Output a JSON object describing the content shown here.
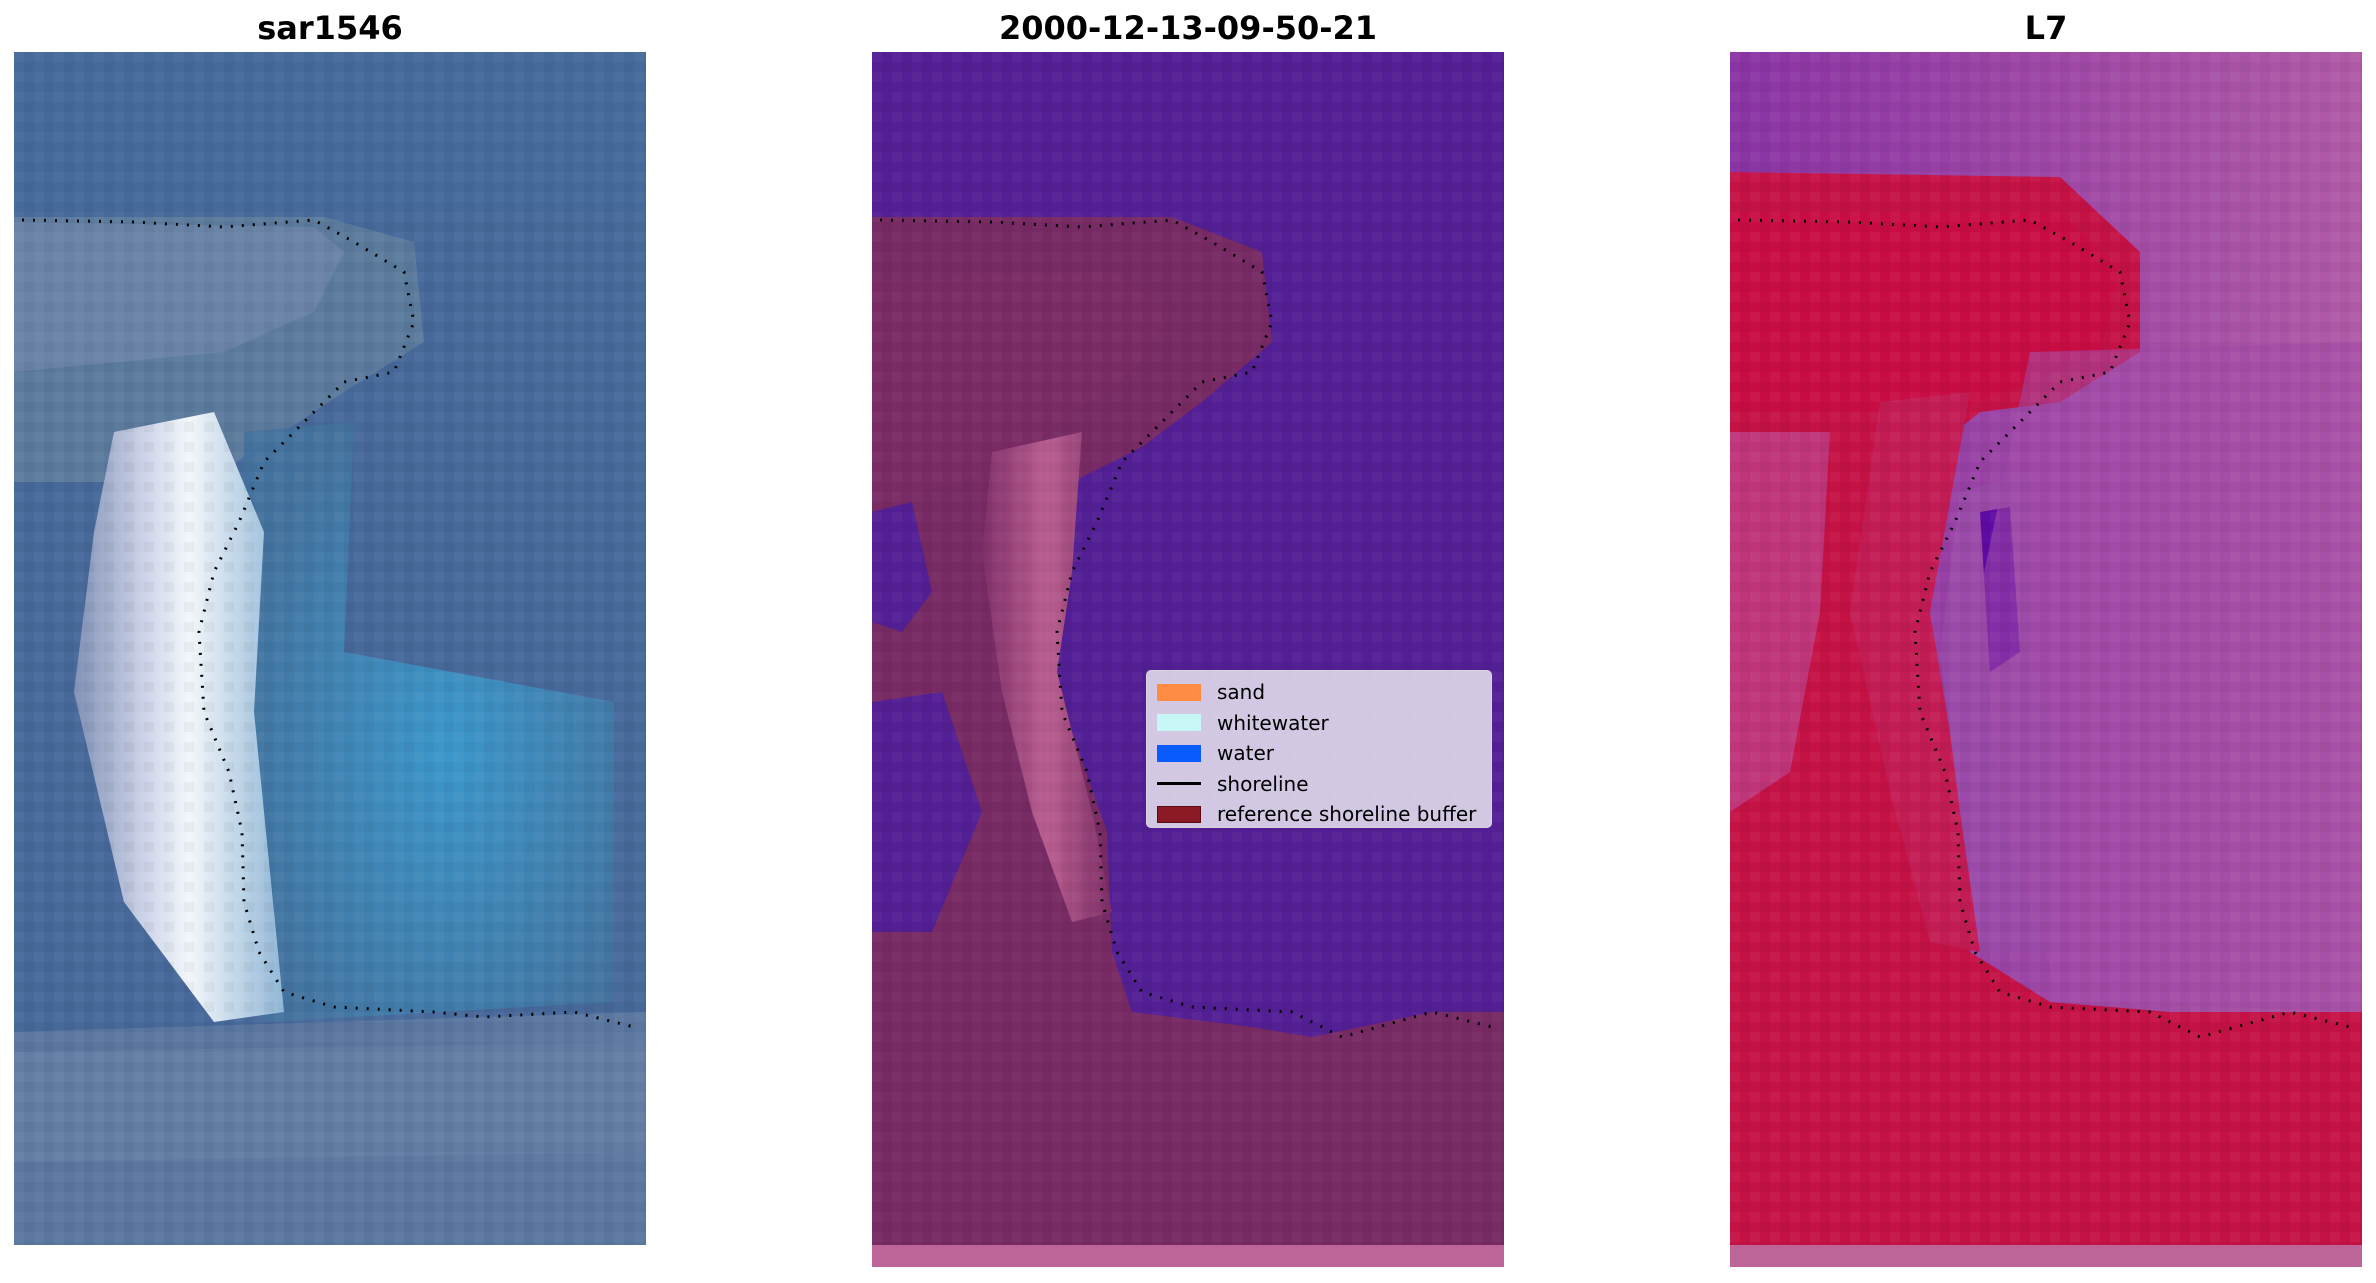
{
  "panels": [
    {
      "title": "sar1546"
    },
    {
      "title": "2000-12-13-09-50-21"
    },
    {
      "title": "L7"
    }
  ],
  "legend": {
    "items": [
      {
        "label": "sand",
        "kind": "patch",
        "color": "#ff8c42"
      },
      {
        "label": "whitewater",
        "kind": "patch",
        "color": "#c6f6f6"
      },
      {
        "label": "water",
        "kind": "patch",
        "color": "#0a5cff"
      },
      {
        "label": "shoreline",
        "kind": "line",
        "color": "#000000"
      },
      {
        "label": "reference shoreline buffer",
        "kind": "patch",
        "color": "#8b1a24"
      }
    ]
  },
  "colors": {
    "rgb_water": "#4a6f9a",
    "rgb_bright_beach": "#e9f0f8",
    "rgb_lagoon": "#3f9ec9",
    "classified_water": "#531f94",
    "classified_land": "#772a63",
    "classified_buffer_bright": "#b9608f",
    "l7_land": "#c41245",
    "l7_water": "#9a4aa8",
    "l7_deep": "#5e0ba4"
  }
}
